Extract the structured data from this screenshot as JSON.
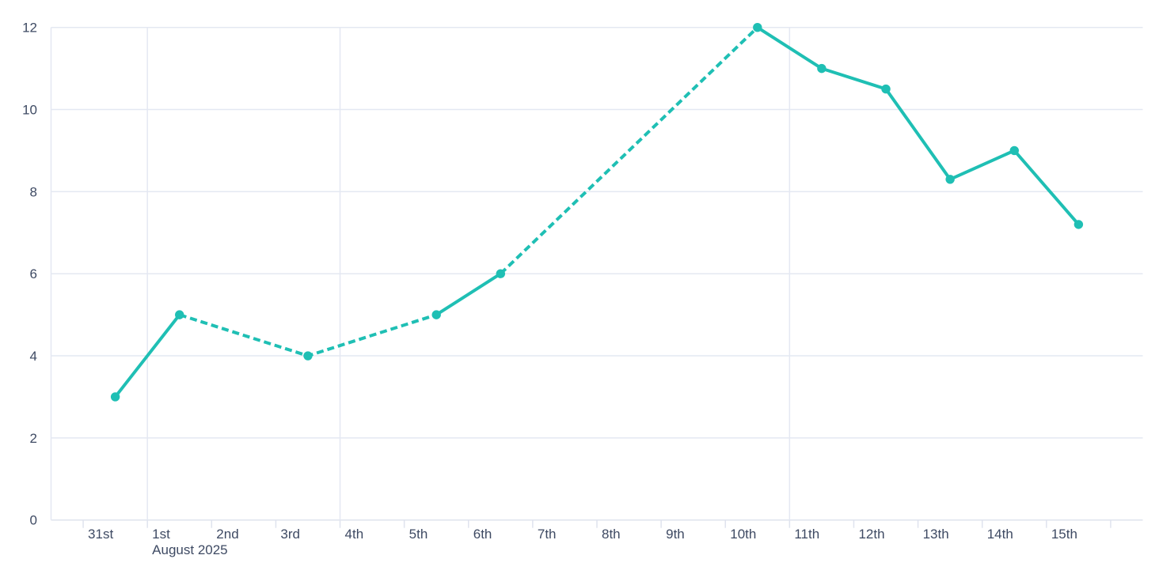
{
  "chart_data": {
    "type": "line",
    "title": "",
    "subtitle": "",
    "legend": "none",
    "background_color": "#ffffff",
    "colors": {
      "series": "#1fbfb4",
      "gridline": "#e4e8f2",
      "axis_line": "#dfe3ee",
      "tick_mark": "#dfe3ee",
      "label_text": "#3e4a63"
    },
    "x_axis": {
      "label": "",
      "tick_labels": [
        "31st",
        "1st",
        "2nd",
        "3rd",
        "4th",
        "5th",
        "6th",
        "7th",
        "8th",
        "9th",
        "10th",
        "11th",
        "12th",
        "13th",
        "14th",
        "15th",
        ""
      ],
      "month_label": "August 2025",
      "month_label_tick_index": 1,
      "gridline_tick_indices": [
        1,
        4,
        11
      ],
      "num_day_slots": 17,
      "grid": "partial-vertical"
    },
    "y_axis": {
      "label": "",
      "min": 0,
      "max": 12,
      "tick_step": 2,
      "tick_labels": [
        "0",
        "2",
        "4",
        "6",
        "8",
        "10",
        "12"
      ],
      "grid": "on"
    },
    "series": [
      {
        "name": "daily-values",
        "color": "#1fbfb4",
        "line_width": 4,
        "marker_radius": 5.7,
        "dash_pattern": "9 5",
        "points": [
          {
            "date": "31st",
            "day_index": 0,
            "value": 3,
            "segment_to_next": "solid"
          },
          {
            "date": "1st",
            "day_index": 1,
            "value": 5,
            "segment_to_next": "dashed"
          },
          {
            "date": "3rd",
            "day_index": 3,
            "value": 4,
            "segment_to_next": "dashed"
          },
          {
            "date": "5th",
            "day_index": 5,
            "value": 5,
            "segment_to_next": "solid"
          },
          {
            "date": "6th",
            "day_index": 6,
            "value": 6,
            "segment_to_next": "dashed"
          },
          {
            "date": "10th",
            "day_index": 10,
            "value": 12,
            "segment_to_next": "solid"
          },
          {
            "date": "11th",
            "day_index": 11,
            "value": 11,
            "segment_to_next": "solid"
          },
          {
            "date": "12th",
            "day_index": 12,
            "value": 10.5,
            "segment_to_next": "solid"
          },
          {
            "date": "13th",
            "day_index": 13,
            "value": 8.3,
            "segment_to_next": "solid"
          },
          {
            "date": "14th",
            "day_index": 14,
            "value": 9,
            "segment_to_next": "solid"
          },
          {
            "date": "15th",
            "day_index": 15,
            "value": 7.2,
            "segment_to_next": null
          }
        ]
      }
    ]
  }
}
